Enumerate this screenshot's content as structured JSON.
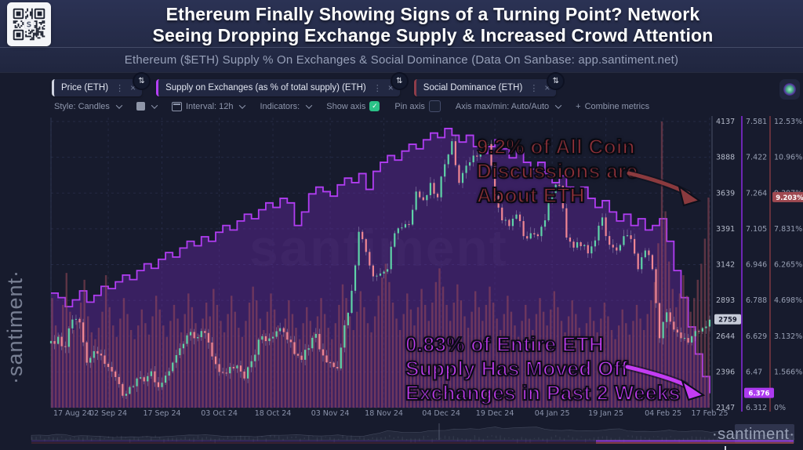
{
  "header": {
    "title_line1": "Ethereum Finally Showing Signs of a Turning Point? Network",
    "title_line2": "Seeing Dropping Exchange Supply & Increased Crowd Attention",
    "subtitle": "Ethereum ($ETH) Supply % On Exchanges & Social Dominance (Data On Sanbase: app.santiment.net)",
    "qr_logo_letter": "S"
  },
  "icons": {
    "axis_toggle": "⇅",
    "kebab": "⋮",
    "close": "×",
    "plus": "+",
    "check": "✓"
  },
  "toolbar": {
    "metric_tabs": [
      {
        "label": "Price (ETH)",
        "color": "#cfd3e0"
      },
      {
        "label": "Supply on Exchanges (as % of total supply) (ETH)",
        "color": "#b440f5"
      },
      {
        "label": "Social Dominance (ETH)",
        "color": "#8f3d4a"
      }
    ],
    "settings": {
      "style_label": "Style: Candles",
      "interval_label": "Interval: 12h",
      "indicators_label": "Indicators:",
      "show_axis_label": "Show axis",
      "pin_axis_label": "Pin axis",
      "axis_maxmin_label": "Axis max/min: Auto/Auto",
      "combine_label": "Combine metrics"
    }
  },
  "watermarks": {
    "left_vertical": "·santiment·",
    "center": "santiment",
    "bottom_right": "·santiment·"
  },
  "annotations": [
    {
      "lines": [
        "9.2% of All Coin",
        "Discussions are",
        "About ETH"
      ],
      "color": "#96333a"
    },
    {
      "lines": [
        "0.83% of Entire ETH",
        "Supply Has Moved Off",
        "Exchanges in Past 2 Weeks"
      ],
      "color": "#c43cf2"
    }
  ],
  "axes": {
    "price_ticks": [
      "4137",
      "3888",
      "3639",
      "3391",
      "3142",
      "2893",
      "2644",
      "2396",
      "2147"
    ],
    "supply_ticks": [
      "7.581",
      "7.422",
      "7.264",
      "7.105",
      "6.946",
      "6.788",
      "6.629",
      "6.47",
      "6.312"
    ],
    "social_ticks": [
      "12.53%",
      "10.96%",
      "9.397%",
      "7.831%",
      "6.265%",
      "4.698%",
      "3.132%",
      "1.566%",
      "0%"
    ],
    "badges": {
      "price": {
        "text": "2759",
        "bg": "#c6cbd8",
        "fg": "#161a2c"
      },
      "supply": {
        "text": "6.376",
        "bg": "#ad3af0",
        "fg": "#ffffff"
      },
      "social": {
        "text": "9.203%",
        "bg": "#a04a52",
        "fg": "#ffffff"
      }
    }
  },
  "chart_data": {
    "type": "mixed",
    "x_range": [
      "17 Aug 24",
      "17 Feb 25"
    ],
    "x_ticks": [
      {
        "label": "17 Aug 24",
        "day": 0
      },
      {
        "label": "02 Sep 24",
        "day": 16
      },
      {
        "label": "17 Sep 24",
        "day": 31
      },
      {
        "label": "03 Oct 24",
        "day": 47
      },
      {
        "label": "18 Oct 24",
        "day": 62
      },
      {
        "label": "03 Nov 24",
        "day": 78
      },
      {
        "label": "18 Nov 24",
        "day": 93
      },
      {
        "label": "04 Dec 24",
        "day": 109
      },
      {
        "label": "19 Dec 24",
        "day": 124
      },
      {
        "label": "04 Jan 25",
        "day": 140
      },
      {
        "label": "19 Jan 25",
        "day": 155
      },
      {
        "label": "04 Feb 25",
        "day": 171
      },
      {
        "label": "17 Feb 25",
        "day": 184
      }
    ],
    "series": [
      {
        "name": "Price (ETH)",
        "type": "candlestick",
        "interval": "2 days sampled",
        "axis_min": 2147,
        "axis_max": 4137,
        "color_up": "#5fd3a8",
        "color_down": "#f08793",
        "closes": [
          2610,
          2640,
          2570,
          2760,
          2740,
          2460,
          2540,
          2510,
          2430,
          2360,
          2230,
          2290,
          2350,
          2330,
          2400,
          2290,
          2370,
          2460,
          2560,
          2650,
          2630,
          2680,
          2600,
          2450,
          2390,
          2430,
          2440,
          2350,
          2470,
          2620,
          2610,
          2640,
          2700,
          2620,
          2520,
          2480,
          2560,
          2660,
          2510,
          2460,
          2420,
          2720,
          2960,
          3370,
          3230,
          3060,
          3080,
          3110,
          3360,
          3400,
          3420,
          3650,
          3590,
          3710,
          3610,
          3840,
          4000,
          3710,
          3830,
          3900,
          3950,
          3980,
          3620,
          3450,
          3410,
          3490,
          3340,
          3360,
          3340,
          3450,
          3640,
          3690,
          3330,
          3260,
          3270,
          3220,
          3310,
          3470,
          3280,
          3240,
          3340,
          3320,
          3110,
          3240,
          3110,
          2630,
          2810,
          2690,
          2630,
          2600,
          2680,
          2700,
          2759
        ],
        "last_value": 2759
      },
      {
        "name": "Supply on Exchanges (as % of total supply) (ETH)",
        "type": "area-line",
        "interval": "2 days sampled",
        "axis_min": 6.312,
        "axis_max": 7.581,
        "color": "#b13df2",
        "values": [
          6.82,
          6.8,
          6.76,
          6.79,
          6.83,
          6.78,
          6.81,
          6.85,
          6.84,
          6.87,
          6.9,
          6.88,
          6.92,
          6.95,
          6.93,
          6.97,
          7.0,
          6.98,
          7.02,
          7.05,
          7.03,
          7.07,
          7.05,
          7.09,
          7.12,
          7.1,
          7.14,
          7.17,
          7.15,
          7.19,
          7.22,
          7.2,
          7.24,
          7.22,
          7.12,
          7.18,
          7.26,
          7.29,
          7.27,
          7.25,
          7.3,
          7.33,
          7.31,
          7.35,
          7.28,
          7.36,
          7.4,
          7.43,
          7.41,
          7.45,
          7.48,
          7.46,
          7.5,
          7.53,
          7.51,
          7.55,
          7.52,
          7.49,
          7.52,
          7.47,
          7.44,
          7.47,
          7.5,
          7.46,
          7.42,
          7.45,
          7.4,
          7.37,
          7.4,
          7.35,
          7.31,
          7.34,
          7.29,
          7.26,
          7.29,
          7.24,
          7.2,
          7.23,
          7.18,
          7.14,
          7.17,
          7.12,
          7.15,
          7.1,
          7.12,
          7.15,
          7.05,
          6.92,
          6.8,
          6.67,
          6.55,
          6.45,
          6.376
        ],
        "last_value": 6.376
      },
      {
        "name": "Social Dominance (ETH)",
        "type": "bars",
        "interval": "daily sampled",
        "axis_min": 0,
        "axis_max": 12.53,
        "color": "#a34d5c",
        "values": [
          4.8,
          3.6,
          3.2,
          4.5,
          5.9,
          4.2,
          3.4,
          3.8,
          4.6,
          5.6,
          4.0,
          3.3,
          3.0,
          3.5,
          4.2,
          5.8,
          4.4,
          3.6,
          3.1,
          3.9,
          4.8,
          4.1,
          3.4,
          3.0,
          3.6,
          4.3,
          3.7,
          3.2,
          4.0,
          4.9,
          4.3,
          3.6,
          3.1,
          3.8,
          4.5,
          3.9,
          3.3,
          4.1,
          5.0,
          4.4,
          3.7,
          3.2,
          3.9,
          4.6,
          4.0,
          5.2,
          4.5,
          3.8,
          3.3,
          4.1,
          4.9,
          4.2,
          3.5,
          3.1,
          3.8,
          4.6,
          5.3,
          4.7,
          3.9,
          3.4,
          4.2,
          5.0,
          4.3,
          3.6,
          3.2,
          3.9,
          4.7,
          4.1,
          3.5,
          3.0,
          3.7,
          4.4,
          3.8,
          3.3,
          4.0,
          4.8,
          4.1,
          3.5,
          3.0,
          3.7,
          4.5,
          5.4,
          4.8,
          4.0,
          3.4,
          4.2,
          5.1,
          4.4,
          3.7,
          3.3,
          4.0,
          4.9,
          5.7,
          6.3,
          5.5,
          4.6,
          3.9,
          3.4,
          4.1,
          5.0,
          4.3,
          3.6,
          4.4,
          5.2,
          4.5,
          3.8,
          4.6,
          5.5,
          6.1,
          5.3,
          4.5,
          3.8,
          4.6,
          5.4,
          4.7,
          4.0,
          3.5,
          4.2,
          5.1,
          4.4,
          3.8,
          4.5,
          5.3,
          4.6,
          3.9,
          3.4,
          4.1,
          4.9,
          4.2,
          3.6,
          3.1,
          3.8,
          4.5,
          3.9,
          3.4,
          4.1,
          4.8,
          4.2,
          3.6,
          4.3,
          5.1,
          4.4,
          3.8,
          3.3,
          4.0,
          4.7,
          4.1,
          3.5,
          3.1,
          3.7,
          4.4,
          3.8,
          3.3,
          3.9,
          4.6,
          4.0,
          3.4,
          3.0,
          3.6,
          4.3,
          3.7,
          3.2,
          3.8,
          4.5,
          3.9,
          3.4,
          4.1,
          4.7,
          5.5,
          7.2,
          12.53,
          8.6,
          6.4,
          5.2,
          4.4,
          5.0,
          5.8,
          4.9,
          4.2,
          4.8,
          5.6,
          6.3,
          7.4,
          9.2
        ],
        "last_value": 9.203
      }
    ]
  }
}
